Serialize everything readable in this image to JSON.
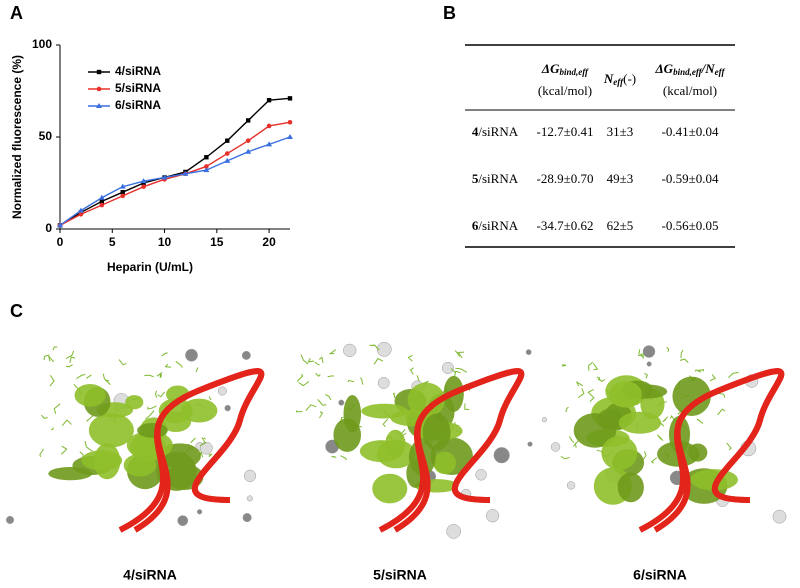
{
  "panel_labels": [
    "A",
    "B",
    "C"
  ],
  "chart_data": {
    "type": "line",
    "xlabel": "Heparin (U/mL)",
    "ylabel": "Normalized fluorescence (%)",
    "x": [
      0,
      2,
      4,
      6,
      8,
      10,
      12,
      14,
      16,
      18,
      20,
      22
    ],
    "series": [
      {
        "name": "4/siRNA",
        "color": "#000000",
        "marker": "square",
        "values": [
          2,
          9,
          15,
          20,
          25,
          28,
          31,
          39,
          48,
          59,
          70,
          71
        ]
      },
      {
        "name": "5/siRNA",
        "color": "#e8302a",
        "marker": "circle",
        "values": [
          2,
          8,
          13,
          18,
          23,
          27,
          30,
          34,
          41,
          48,
          56,
          58
        ]
      },
      {
        "name": "6/siRNA",
        "color": "#3a6fe0",
        "marker": "triangle",
        "values": [
          2,
          10,
          17,
          23,
          26,
          28,
          30,
          32,
          37,
          42,
          46,
          50
        ]
      }
    ],
    "xlim": [
      0,
      22
    ],
    "xticks": [
      0,
      5,
      10,
      15,
      20
    ],
    "ylim": [
      0,
      100
    ],
    "yticks": [
      0,
      50,
      100
    ],
    "legend": "upper left"
  },
  "table": {
    "header": [
      {
        "sym": "ΔG",
        "sub": "bind,eff",
        "unit": "(kcal/mol)"
      },
      {
        "sym": "N",
        "sub": "eff",
        "unit": "(-)"
      },
      {
        "sym": "ΔG",
        "sub": "bind,eff",
        "sym2": "/N",
        "sub2": "eff",
        "unit": "(kcal/mol)"
      }
    ],
    "rows": [
      {
        "bold": "4",
        "label": "/siRNA",
        "cells": [
          "-12.7±0.41",
          "31±3",
          "-0.41±0.04"
        ]
      },
      {
        "bold": "5",
        "label": "/siRNA",
        "cells": [
          "-28.9±0.70",
          "49±3",
          "-0.59±0.04"
        ]
      },
      {
        "bold": "6",
        "label": "/siRNA",
        "cells": [
          "-34.7±0.62",
          "62±5",
          "-0.56±0.05"
        ]
      }
    ]
  },
  "images": [
    {
      "caption": "4/siRNA"
    },
    {
      "caption": "5/siRNA"
    },
    {
      "caption": "6/siRNA"
    }
  ]
}
